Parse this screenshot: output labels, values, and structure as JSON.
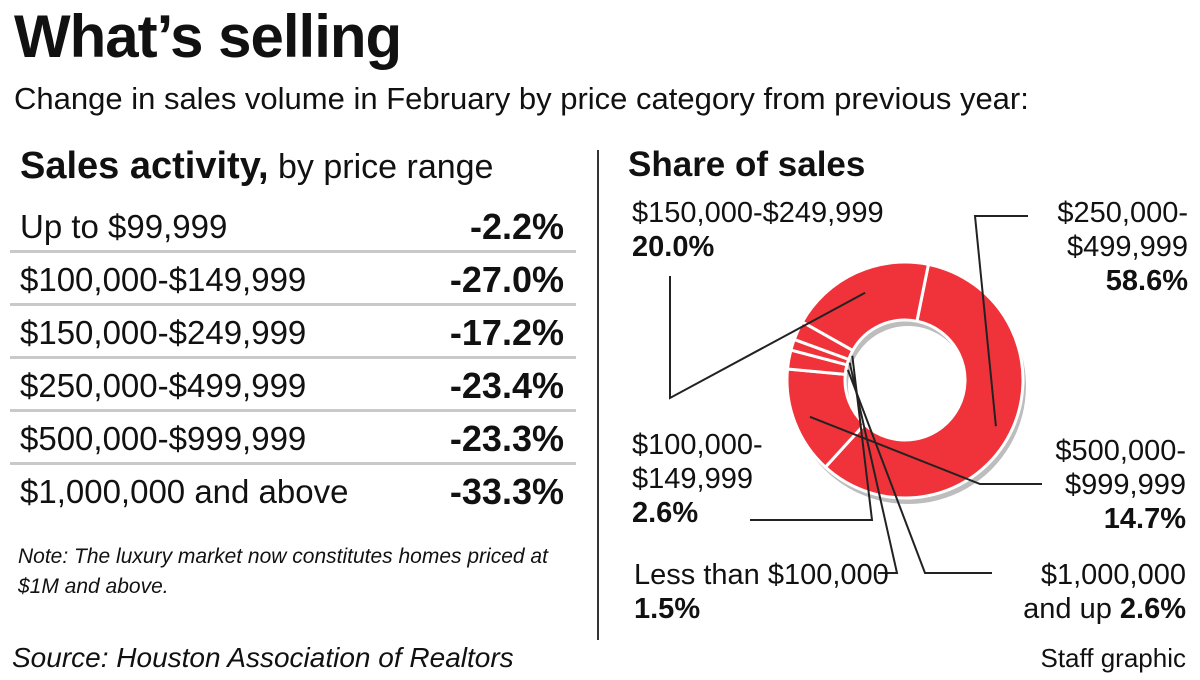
{
  "title": "What’s selling",
  "subtitle": "Change in sales volume in February by price category from previous year:",
  "sales_activity": {
    "heading_bold": "Sales activity,",
    "heading_rest": " by price range",
    "rows": [
      {
        "range": "Up to $99,999",
        "change": "-2.2%"
      },
      {
        "range": "$100,000-$149,999",
        "change": "-27.0%"
      },
      {
        "range": "$150,000-$249,999",
        "change": "-17.2%"
      },
      {
        "range": "$250,000-$499,999",
        "change": "-23.4%"
      },
      {
        "range": "$500,000-$999,999",
        "change": "-23.3%"
      },
      {
        "range": "$1,000,000 and above",
        "change": "-33.3%"
      }
    ],
    "note": "Note: The luxury market now constitutes homes priced at $1M and above."
  },
  "share_heading": "Share of sales",
  "chart_data": {
    "type": "pie",
    "title": "Share of sales",
    "colors": {
      "slice": "#f0333a",
      "separator": "#ffffff",
      "shadow": "#bdbdbd",
      "leader": "#222222"
    },
    "slices": [
      {
        "key": "s250",
        "label_lines": [
          "$250,000-",
          "$499,999"
        ],
        "value": 58.6,
        "value_label": "58.6%"
      },
      {
        "key": "s500",
        "label_lines": [
          "$500,000-",
          "$999,999"
        ],
        "value": 14.7,
        "value_label": "14.7%"
      },
      {
        "key": "s1m",
        "label_lines": [
          "$1,000,000",
          "and up"
        ],
        "value": 2.6,
        "value_label": "2.6%"
      },
      {
        "key": "s100",
        "label_lines": [
          "Less than $100,000"
        ],
        "value": 1.5,
        "value_label": "1.5%"
      },
      {
        "key": "s149",
        "label_lines": [
          "$100,000-",
          "$149,999"
        ],
        "value": 2.6,
        "value_label": "2.6%"
      },
      {
        "key": "s150",
        "label_lines": [
          "$150,000-$249,999"
        ],
        "value": 20.0,
        "value_label": "20.0%"
      }
    ]
  },
  "source": "Source: Houston Association of Realtors",
  "credit": "Staff graphic"
}
